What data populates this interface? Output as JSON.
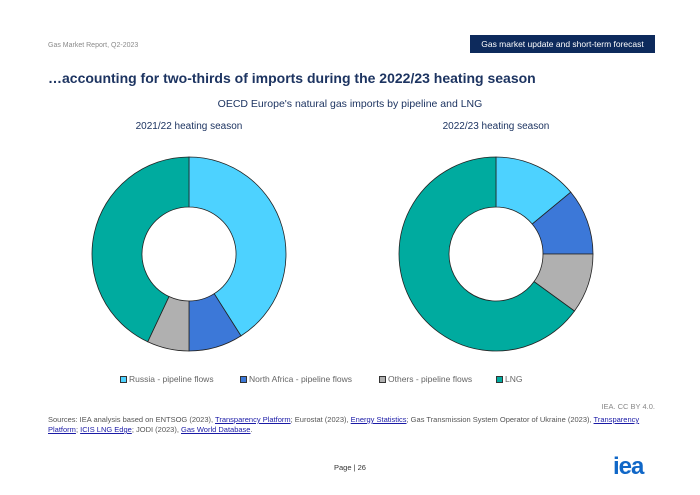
{
  "header": {
    "report": "Gas Market Report, Q2-2023",
    "section": "Gas market update and short-term forecast"
  },
  "headline": "…accounting for two-thirds of imports during the 2022/23 heating season",
  "colors": {
    "Russia - pipeline flows": "#4dd2ff",
    "North Africa - pipeline flows": "#3c78d8",
    "Others - pipeline flows": "#b0b0b0",
    "LNG": "#00ab9f"
  },
  "chart_data": [
    {
      "type": "pie",
      "title": "OECD Europe's natural gas imports by pipeline and LNG",
      "subtitle": "2021/22 heating season",
      "donut": true,
      "categories": [
        "Russia - pipeline flows",
        "North Africa - pipeline flows",
        "Others - pipeline flows",
        "LNG"
      ],
      "values": [
        41,
        9,
        7,
        43
      ],
      "unit": "%",
      "legend": "bottom"
    },
    {
      "type": "pie",
      "title": "OECD Europe's natural gas imports by pipeline and LNG",
      "subtitle": "2022/23 heating season",
      "donut": true,
      "categories": [
        "Russia - pipeline flows",
        "North Africa - pipeline flows",
        "Others - pipeline flows",
        "LNG"
      ],
      "values": [
        14,
        11,
        10,
        65
      ],
      "unit": "%",
      "legend": "bottom"
    }
  ],
  "credit": "IEA. CC BY 4.0.",
  "sources": {
    "prefix": "Sources: IEA analysis based on ENTSOG (2023), ",
    "l1": "Transparency Platform",
    "t1": "; Eurostat (2023), ",
    "l2": "Energy Statistics",
    "t2": "; Gas Transmission System Operator of Ukraine (2023), ",
    "l3": "Transparency Platform",
    "t3": "; ",
    "l4": "ICIS LNG Edge",
    "t4": "; JODI (2023), ",
    "l5": "Gas World Database",
    "t5": "."
  },
  "footer": {
    "page": "Page | 26",
    "logo": "iea"
  }
}
